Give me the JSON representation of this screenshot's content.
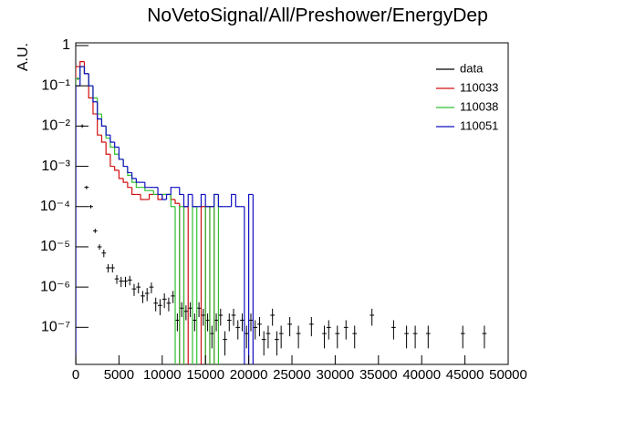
{
  "chart_data": {
    "type": "histogram",
    "title": "NoVetoSignal/All/Preshower/EnergyDep",
    "y_label": "A.U.",
    "log_y": true,
    "xlim": [
      0,
      50000
    ],
    "ylim": [
      1.2e-08,
      1.17
    ],
    "xticks": [
      0,
      5000,
      10000,
      15000,
      20000,
      25000,
      30000,
      35000,
      40000,
      45000,
      50000
    ],
    "yticks": [
      {
        "value": 1e-07,
        "label": "10⁻⁷"
      },
      {
        "value": 1e-06,
        "label": "10⁻⁶"
      },
      {
        "value": 1e-05,
        "label": "10⁻⁵"
      },
      {
        "value": 0.0001,
        "label": "10⁻⁴"
      },
      {
        "value": 0.001,
        "label": "10⁻³"
      },
      {
        "value": 0.01,
        "label": "10⁻²"
      },
      {
        "value": 0.1,
        "label": "10⁻¹"
      },
      1
    ],
    "legend": "top-right",
    "bins": [
      0,
      500,
      1000,
      1500,
      2000,
      2500,
      3000,
      3500,
      4000,
      4500,
      5000,
      5500,
      6000,
      6500,
      7000,
      7500,
      8000,
      8500,
      9000,
      9500,
      10000,
      10500,
      11000,
      11500,
      12000,
      12500,
      13000,
      13500,
      14000,
      14500,
      15000,
      15500,
      16000,
      16500,
      17000,
      17500,
      18000,
      18500,
      19000,
      19500,
      20000,
      20500,
      21000,
      21500,
      22000,
      22500,
      23000,
      23500,
      24000,
      24500,
      25000,
      25500,
      26000,
      26500,
      27000,
      27500,
      28000,
      28500,
      29000,
      29500,
      30000,
      30500,
      31000,
      31500,
      32000,
      32500,
      33000,
      33500,
      34000,
      34500,
      35000,
      35500,
      36000,
      36500,
      37000,
      37500,
      38000,
      38500,
      39000,
      39500,
      40000,
      40500,
      41000,
      41500,
      42000,
      42500,
      43000,
      43500,
      44000,
      44500,
      45000,
      45500,
      46000,
      46500,
      47000,
      47500,
      48000,
      48500,
      49000,
      49500,
      50000
    ],
    "series": [
      {
        "name": "data",
        "color": "#000000",
        "style": "points",
        "values": [
          0.15,
          0.01,
          0.0003,
          0.0001,
          2.5e-05,
          1e-05,
          7e-06,
          3e-06,
          3e-06,
          1.6e-06,
          1.4e-06,
          1.4e-06,
          1.5e-06,
          9e-07,
          1e-06,
          6e-07,
          7e-07,
          1e-06,
          4e-07,
          3.5e-07,
          5e-07,
          4e-07,
          6e-07,
          1.5e-07,
          3e-07,
          2.5e-07,
          3e-07,
          1.5e-07,
          3e-07,
          2e-07,
          1.5e-07,
          7e-08,
          1.5e-07,
          2e-07,
          5e-08,
          1.5e-07,
          2e-07,
          1e-07,
          1.5e-07,
          7e-08,
          1.5e-07,
          1e-07,
          1.2e-07,
          5e-08,
          7e-08,
          2e-07,
          5e-08,
          7e-08,
          null,
          1.2e-07,
          null,
          7e-08,
          null,
          null,
          1.2e-07,
          null,
          null,
          7e-08,
          1e-07,
          null,
          7e-08,
          null,
          1e-07,
          null,
          7e-08,
          null,
          null,
          null,
          2e-07,
          null,
          null,
          null,
          null,
          1e-07,
          null,
          null,
          7e-08,
          null,
          7e-08,
          null,
          null,
          7e-08,
          null,
          null,
          null,
          null,
          null,
          null,
          null,
          7e-08,
          null,
          null,
          null,
          null,
          7e-08,
          null,
          null,
          null,
          null,
          null
        ],
        "errors": [
          0.01,
          0.001,
          3e-05,
          1e-05,
          3e-06,
          1.5e-06,
          1.5e-06,
          7e-07,
          7e-07,
          4e-07,
          4e-07,
          4e-07,
          4e-07,
          3e-07,
          3e-07,
          2e-07,
          2.5e-07,
          3e-07,
          1.5e-07,
          1.5e-07,
          2e-07,
          1.5e-07,
          2e-07,
          7e-08,
          1.2e-07,
          1e-07,
          1.2e-07,
          7e-08,
          1.2e-07,
          9e-08,
          7e-08,
          4e-08,
          7e-08,
          9e-08,
          3e-08,
          7e-08,
          9e-08,
          5e-08,
          7e-08,
          4e-08,
          7e-08,
          5e-08,
          6e-08,
          3e-08,
          4e-08,
          9e-08,
          3e-08,
          4e-08,
          null,
          6e-08,
          null,
          4e-08,
          null,
          null,
          6e-08,
          null,
          null,
          4e-08,
          5e-08,
          null,
          4e-08,
          null,
          5e-08,
          null,
          4e-08,
          null,
          null,
          null,
          9e-08,
          null,
          null,
          null,
          null,
          5e-08,
          null,
          null,
          4e-08,
          null,
          4e-08,
          null,
          null,
          4e-08,
          null,
          null,
          null,
          null,
          null,
          null,
          null,
          4e-08,
          null,
          null,
          null,
          null,
          4e-08,
          null,
          null,
          null,
          null,
          null
        ]
      },
      {
        "name": "110033",
        "color": "#d01010",
        "style": "step",
        "values": [
          0.3,
          0.4,
          0.2,
          0.05,
          0.02,
          0.006,
          0.004,
          0.002,
          0.001,
          0.0008,
          0.0005,
          0.0004,
          0.0003,
          0.0002,
          0.0002,
          0.00015,
          0.00015,
          0.0002,
          0.0002,
          0.00015,
          0.0002,
          0.0002,
          0.00015,
          0.00012,
          0,
          0.0001,
          0,
          0,
          0,
          0.0001,
          0,
          0.0001,
          0,
          0,
          0,
          0,
          0,
          0,
          0,
          0,
          0,
          0,
          0,
          0,
          0,
          0,
          0,
          0,
          0,
          0,
          0,
          0,
          0,
          0,
          0,
          0,
          0,
          0,
          0,
          0,
          0,
          0,
          0,
          0,
          0,
          0,
          0,
          0,
          0,
          0,
          0,
          0,
          0,
          0,
          0,
          0,
          0,
          0,
          0,
          0,
          0,
          0,
          0,
          0,
          0,
          0,
          0,
          0,
          0,
          0,
          0,
          0,
          0,
          0,
          0,
          0,
          0,
          0,
          0,
          0
        ]
      },
      {
        "name": "110038",
        "color": "#30c030",
        "style": "step",
        "values": [
          0.15,
          0.3,
          0.2,
          0.1,
          0.05,
          0.02,
          0.01,
          0.005,
          0.003,
          0.002,
          0.0015,
          0.001,
          0.0006,
          0.0004,
          0.0003,
          0.0003,
          0.00025,
          0.00025,
          0.0002,
          0.0002,
          0.0002,
          0.0002,
          0.0001,
          0,
          0.0001,
          0,
          0,
          0.0001,
          0,
          0,
          0.0001,
          0,
          0.0002,
          0,
          0,
          0,
          0,
          0,
          0,
          0,
          0,
          0,
          0,
          0,
          0,
          0,
          0,
          0,
          0,
          0,
          0,
          0,
          0,
          0,
          0,
          0,
          0,
          0,
          0,
          0,
          0,
          0,
          0,
          0,
          0,
          0,
          0,
          0,
          0,
          0,
          0,
          0,
          0,
          0,
          0,
          0,
          0,
          0,
          0,
          0,
          0,
          0,
          0,
          0,
          0,
          0,
          0,
          0,
          0,
          0,
          0,
          0,
          0,
          0,
          0,
          0,
          0,
          0,
          0,
          0
        ]
      },
      {
        "name": "110051",
        "color": "#1010c0",
        "style": "step",
        "values": [
          0.1,
          0.3,
          0.2,
          0.1,
          0.04,
          0.015,
          0.01,
          0.006,
          0.004,
          0.003,
          0.0015,
          0.001,
          0.0007,
          0.0005,
          0.0004,
          0.0004,
          0.0003,
          0.0003,
          0.0003,
          0.0002,
          0.00015,
          0.0002,
          0.0003,
          0.0003,
          0.0002,
          0.0001,
          0.0002,
          0.0001,
          0.0001,
          0.0002,
          0.0001,
          0.0001,
          0.0002,
          0.0001,
          0.0001,
          0.0001,
          0.0002,
          0.0001,
          0.0001,
          0,
          0.0002,
          0,
          0,
          0,
          0,
          0,
          0,
          0,
          0,
          0,
          0,
          0,
          0,
          0,
          0,
          0,
          0,
          0,
          0,
          0,
          0,
          0,
          0,
          0,
          0,
          0,
          0,
          0,
          0,
          0,
          0,
          0,
          0,
          0,
          0,
          0,
          0,
          0,
          0,
          0,
          0,
          0,
          0,
          0,
          0,
          0,
          0,
          0,
          0,
          0,
          0,
          0,
          0,
          0,
          0,
          0,
          0,
          0,
          0,
          0
        ]
      }
    ]
  }
}
